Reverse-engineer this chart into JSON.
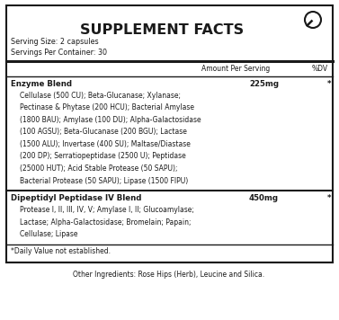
{
  "title": "SUPPLEMENT FACTS",
  "serving_size": "Serving Size: 2 capsules",
  "servings_per_container": "Servings Per Container: 30",
  "amount_per_serving": "Amount Per Serving",
  "percent_dv": "%DV",
  "enzyme_blend_name": "Enzyme Blend",
  "enzyme_blend_amount": "225mg",
  "enzyme_blend_dv": "*",
  "enzyme_blend_ingredients": [
    "Cellulase (500 CU); Beta-Glucanase; Xylanase;",
    "Pectinase & Phytase (200 HCU); Bacterial Amylase",
    "(1800 BAU); Amylase (100 DU); Alpha-Galactosidase",
    "(100 AGSU); Beta-Glucanase (200 BGU); Lactase",
    "(1500 ALU); Invertase (400 SU); Maltase/Diastase",
    "(200 DP); Serratiopeptidase (2500 U); Peptidase",
    "(25000 HUT); Acid Stable Protease (50 SAPU);",
    "Bacterial Protease (50 SAPU); Lipase (1500 FIPU)"
  ],
  "dpp_blend_name": "Dipeptidyl Peptidase IV Blend",
  "dpp_blend_amount": "450mg",
  "dpp_blend_dv": "*",
  "dpp_blend_ingredients": [
    "Protease I, II, III, IV, V; Amylase I, II; Glucoamylase;",
    "Lactase; Alpha-Galactosidase; Bromelain; Papain;",
    "Cellulase; Lipase"
  ],
  "daily_value_note": "*Daily Value not established.",
  "other_ingredients": "Other Ingredients: Rose Hips (Herb), Leucine and Silica.",
  "bg_color": "#ffffff",
  "text_color": "#1a1a1a",
  "border_color": "#1a1a1a"
}
